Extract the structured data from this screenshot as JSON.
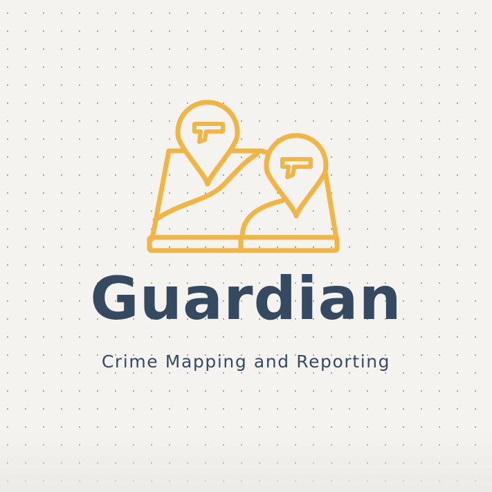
{
  "brand": {
    "name": "Guardian",
    "tagline": "Crime Mapping and Reporting"
  },
  "logo": {
    "icon": "map-with-crime-location-pins-icon",
    "pin_symbol": "gun-icon",
    "stroke_color": "#f2b544"
  },
  "colors": {
    "background": "#f4f3f0",
    "dots": "#9b9b9b",
    "text": "#354a61",
    "accent": "#f2b544"
  }
}
